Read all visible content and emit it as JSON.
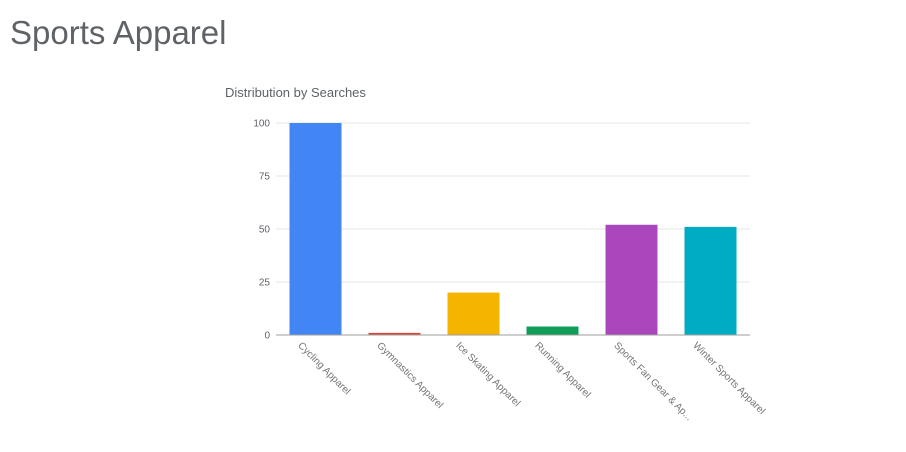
{
  "page": {
    "title": "Sports Apparel"
  },
  "chart_data": {
    "type": "bar",
    "title": "Distribution by Searches",
    "xlabel": "",
    "ylabel": "",
    "categories": [
      "Cycling Apparel",
      "Gymnastics Apparel",
      "Ice Skating Apparel",
      "Running Apparel",
      "Sports Fan Gear & Ap...",
      "Winter Sports Apparel"
    ],
    "values": [
      100,
      1,
      20,
      4,
      52,
      51
    ],
    "colors": [
      "#4285f4",
      "#db4437",
      "#f4b400",
      "#0f9d58",
      "#ab47bc",
      "#00acc1"
    ],
    "ylim": [
      0,
      100
    ],
    "yticks": [
      0,
      25,
      50,
      75,
      100
    ],
    "grid": true,
    "legend": "none"
  }
}
